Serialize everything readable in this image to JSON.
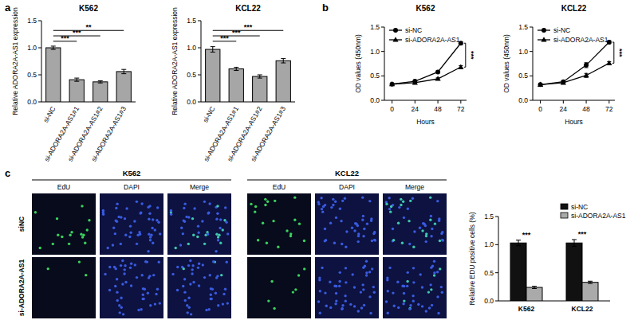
{
  "panel_labels": [
    "a",
    "b",
    "c"
  ],
  "chart_data": [
    {
      "type": "bar",
      "title": "K562",
      "y_label": "Relative ADORA2A-AS1 expression",
      "categories": [
        "si-NC",
        "si-ADORA2A-AS1#1",
        "si-ADORA2A-AS1#2",
        "si-ADORA2A-AS1#3"
      ],
      "values": [
        1.0,
        0.41,
        0.37,
        0.56
      ],
      "errors": [
        0.03,
        0.03,
        0.02,
        0.04
      ],
      "color": "#a6a6a6",
      "ylim": [
        0,
        1.5
      ],
      "yticks": [
        {
          "value": 0,
          "label": "0.0"
        },
        0.5,
        {
          "value": 1,
          "label": "1.0"
        },
        1.5
      ],
      "annotations": [
        {
          "text": "***",
          "from": 0,
          "to": 1
        },
        {
          "text": "***",
          "from": 0,
          "to": 2
        },
        {
          "text": "**",
          "from": 0,
          "to": 3
        }
      ]
    },
    {
      "type": "bar",
      "title": "KCL22",
      "y_label": "Relative ADORA2A-AS1 expression",
      "categories": [
        "si-NC",
        "si-ADORA2A-AS1#1",
        "si-ADORA2A-AS1#2",
        "si-ADORA2A-AS1#3"
      ],
      "values": [
        0.97,
        0.61,
        0.47,
        0.76
      ],
      "errors": [
        0.05,
        0.03,
        0.03,
        0.04
      ],
      "color": "#a6a6a6",
      "ylim": [
        0,
        1.5
      ],
      "yticks": [
        {
          "value": 0,
          "label": "0.0"
        },
        0.5,
        {
          "value": 1,
          "label": "1.0"
        },
        1.5
      ],
      "annotations": [
        {
          "text": "***",
          "from": 0,
          "to": 1
        },
        {
          "text": "***",
          "from": 0,
          "to": 2
        },
        {
          "text": "***",
          "from": 0,
          "to": 3
        }
      ]
    },
    {
      "type": "line",
      "title": "K562",
      "x_label": "Hours",
      "y_label": "OD values (450nm)",
      "x": [
        0,
        24,
        48,
        72
      ],
      "xlim": [
        -8,
        78
      ],
      "xticks": [
        0,
        24,
        48,
        72
      ],
      "ylim": [
        0,
        1.5
      ],
      "yticks": [
        {
          "value": 0,
          "label": "0.0"
        },
        0.5,
        {
          "value": 1,
          "label": "1.0"
        },
        1.5
      ],
      "legend": "upper left",
      "series": [
        {
          "name": "si-NC",
          "color": "#000000",
          "marker": "circle",
          "values": [
            0.33,
            0.39,
            0.58,
            1.17
          ],
          "errors": [
            0.01,
            0.01,
            0.02,
            0.03
          ]
        },
        {
          "name": "si-ADORA2A-AS1",
          "color": "#000000",
          "marker": "triangle",
          "values": [
            0.33,
            0.36,
            0.44,
            0.68
          ],
          "errors": [
            0.01,
            0.01,
            0.02,
            0.03
          ]
        }
      ],
      "annotations": [
        {
          "text": "***",
          "x": 72
        }
      ]
    },
    {
      "type": "line",
      "title": "KCL22",
      "x_label": "Hours",
      "y_label": "OD values (450nm)",
      "x": [
        0,
        24,
        48,
        72
      ],
      "xlim": [
        -8,
        78
      ],
      "xticks": [
        0,
        24,
        48,
        72
      ],
      "ylim": [
        0,
        1.5
      ],
      "yticks": [
        {
          "value": 0,
          "label": "0.0"
        },
        0.5,
        {
          "value": 1,
          "label": "1.0"
        },
        1.5
      ],
      "legend": "upper left",
      "series": [
        {
          "name": "si-NC",
          "color": "#000000",
          "marker": "circle",
          "values": [
            0.32,
            0.38,
            0.72,
            1.19
          ],
          "errors": [
            0.01,
            0.02,
            0.05,
            0.03
          ]
        },
        {
          "name": "si-ADORA2A-AS1",
          "color": "#000000",
          "marker": "triangle",
          "values": [
            0.32,
            0.36,
            0.51,
            0.76
          ],
          "errors": [
            0.01,
            0.02,
            0.04,
            0.03
          ]
        }
      ],
      "annotations": [
        {
          "text": "***",
          "x": 72
        }
      ]
    },
    {
      "type": "bar",
      "y_label": "Relative EDU positive cells (%)",
      "categories": [
        "K562",
        "KCL22"
      ],
      "legend": "upper right",
      "series": [
        {
          "name": "si-NC",
          "color": "#111111",
          "values": [
            1.03,
            1.03
          ],
          "errors": [
            0.05,
            0.06
          ]
        },
        {
          "name": "si-ADORA2A-AS1",
          "color": "#aaaaaa",
          "values": [
            0.24,
            0.33
          ],
          "errors": [
            0.02,
            0.02
          ]
        }
      ],
      "ylim": [
        0,
        1.5
      ],
      "yticks": [
        {
          "value": 0,
          "label": "0.0"
        },
        0.5,
        {
          "value": 1,
          "label": "1.0"
        },
        1.5
      ],
      "annotations": [
        {
          "text": "***",
          "category": 0
        },
        {
          "text": "***",
          "category": 1
        }
      ]
    }
  ],
  "image_grid": {
    "groups": [
      "K562",
      "KCL22"
    ],
    "channels": [
      "EdU",
      "DAPI",
      "Merge"
    ],
    "rows": [
      "siNC",
      "si-ADORA2A-AS1"
    ]
  }
}
